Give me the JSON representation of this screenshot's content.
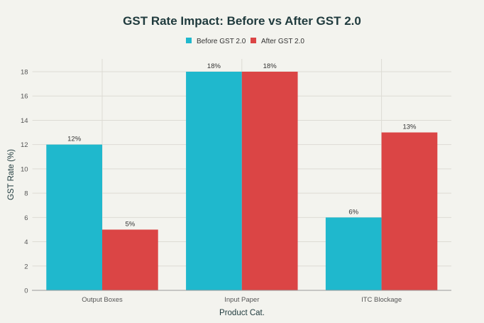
{
  "chart_data": {
    "type": "bar",
    "title": "GST Rate Impact: Before vs After GST 2.0",
    "xlabel": "Product Cat.",
    "ylabel": "GST Rate (%)",
    "categories": [
      "Output Boxes",
      "Input Paper",
      "ITC Blockage"
    ],
    "series": [
      {
        "name": "Before GST 2.0",
        "values": [
          12,
          18,
          6
        ],
        "labels": [
          "12%",
          "18%",
          "6%"
        ],
        "color": "#1fb8cd"
      },
      {
        "name": "After GST 2.0",
        "values": [
          5,
          18,
          13
        ],
        "labels": [
          "5%",
          "18%",
          "13%"
        ],
        "color": "#db4545"
      }
    ],
    "ylim": [
      0,
      19
    ],
    "yticks": [
      0,
      2,
      4,
      6,
      8,
      10,
      12,
      14,
      16,
      18
    ],
    "grid": true,
    "legend": "top-center"
  }
}
